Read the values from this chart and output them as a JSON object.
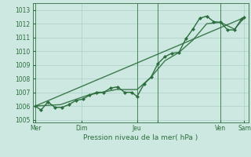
{
  "bg_color": "#cce8e0",
  "grid_color": "#aacfc8",
  "line_color": "#2d6e3e",
  "tick_label_color": "#2d6e3e",
  "xlabel": "Pression niveau de la mer( hPa )",
  "ylim": [
    1004.8,
    1013.5
  ],
  "yticks": [
    1005,
    1006,
    1007,
    1008,
    1009,
    1010,
    1011,
    1012,
    1013
  ],
  "xlim": [
    0,
    15.5
  ],
  "xtick_positions": [
    0.2,
    3.5,
    7.5,
    9.0,
    13.5,
    15.2
  ],
  "xtick_labels": [
    "Mer",
    "Dim",
    "Jeu",
    "",
    "Ven",
    "Sam"
  ],
  "vline_positions": [
    0.2,
    7.5,
    9.0,
    13.5
  ],
  "series_detail_x": [
    0.2,
    0.6,
    1.1,
    1.6,
    2.1,
    2.6,
    3.1,
    3.6,
    4.1,
    4.6,
    5.1,
    5.6,
    6.1,
    6.6,
    7.1,
    7.5,
    8.0,
    8.5,
    9.0,
    9.5,
    10.0,
    10.5,
    11.0,
    11.5,
    12.0,
    12.5,
    13.0,
    13.5,
    14.0,
    14.5,
    15.0,
    15.2
  ],
  "series_detail_y": [
    1006.0,
    1005.7,
    1006.3,
    1005.9,
    1005.9,
    1006.1,
    1006.4,
    1006.5,
    1006.8,
    1007.0,
    1007.0,
    1007.3,
    1007.4,
    1007.0,
    1007.0,
    1006.7,
    1007.6,
    1008.1,
    1009.1,
    1009.6,
    1009.85,
    1009.9,
    1010.9,
    1011.6,
    1012.4,
    1012.55,
    1012.15,
    1012.1,
    1011.55,
    1011.55,
    1012.35,
    1012.45
  ],
  "series_smooth_x": [
    0.2,
    2.0,
    4.0,
    6.0,
    7.5,
    8.5,
    9.5,
    10.5,
    11.5,
    12.5,
    13.5,
    14.5,
    15.2
  ],
  "series_smooth_y": [
    1006.0,
    1006.1,
    1006.8,
    1007.2,
    1007.2,
    1008.1,
    1009.3,
    1009.9,
    1010.8,
    1012.0,
    1012.1,
    1011.6,
    1012.45
  ],
  "trend_x": [
    0.2,
    15.2
  ],
  "trend_y": [
    1006.0,
    1012.45
  ],
  "marker_size": 2.5,
  "linewidth": 1.0
}
